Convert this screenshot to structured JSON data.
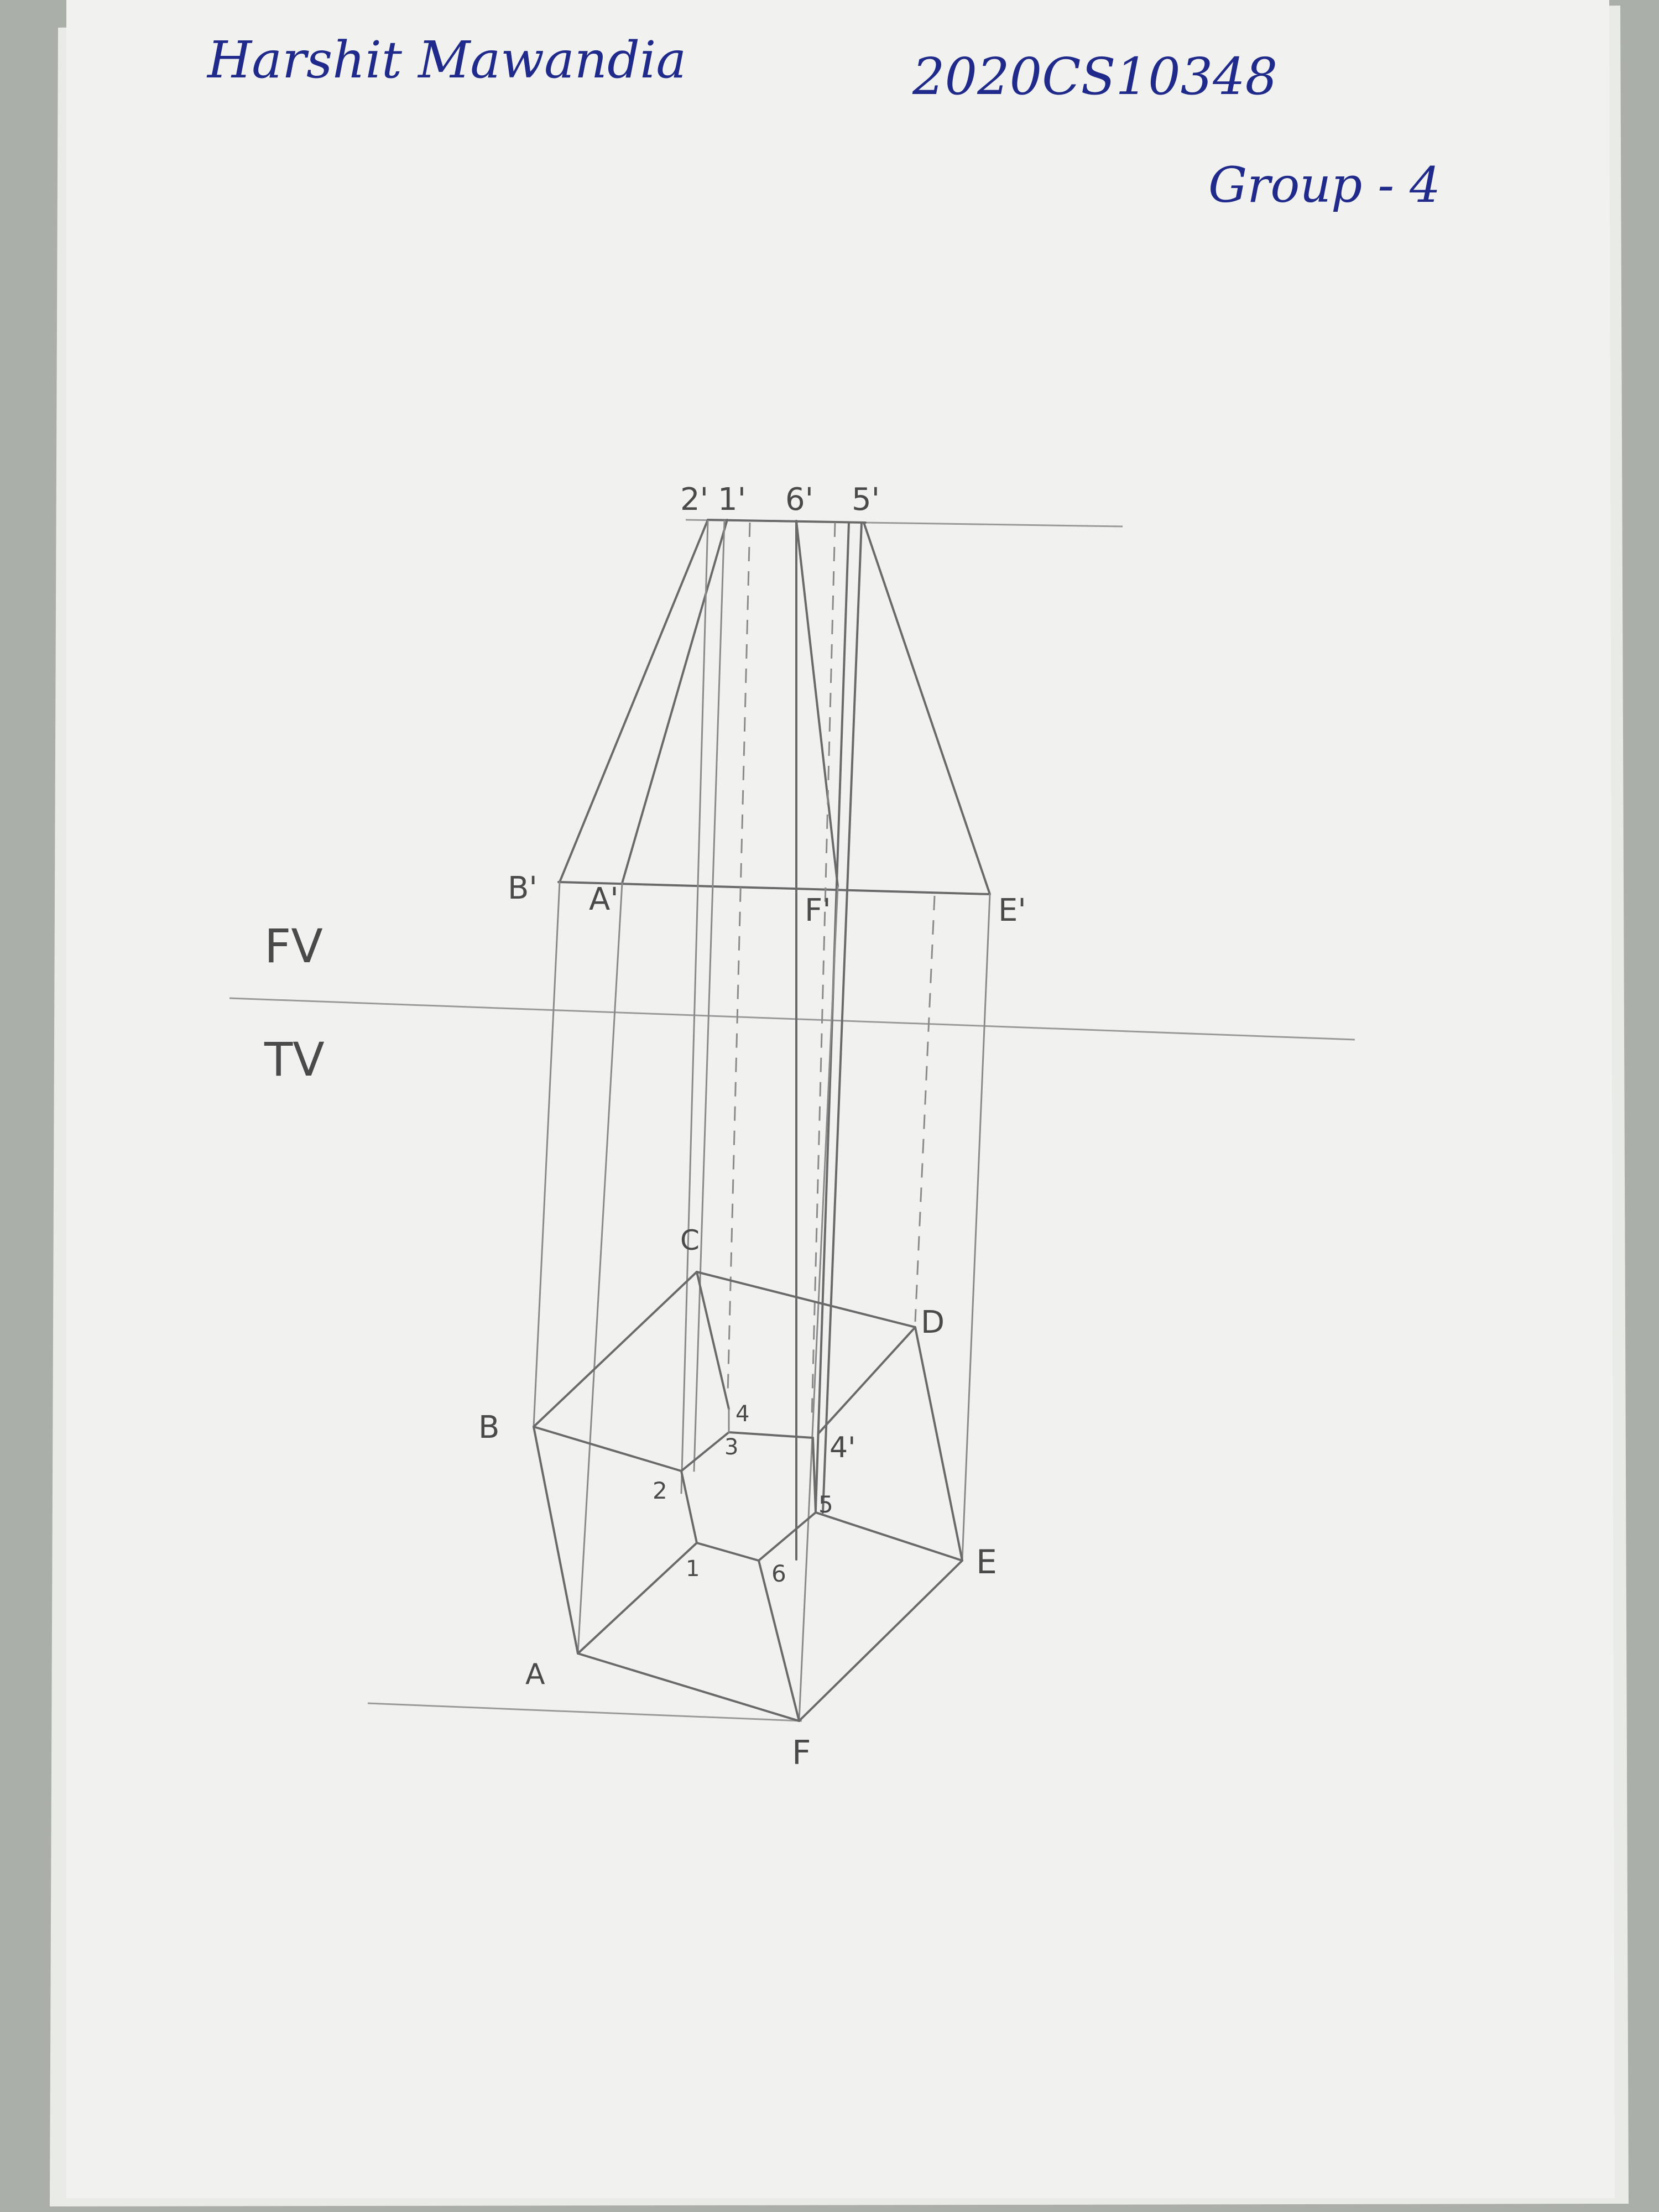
{
  "header": {
    "name": "Harshit Mawandia",
    "roll_number": "2020CS10348",
    "group": "Group - 4"
  },
  "diagram": {
    "view_labels": {
      "front": "FV",
      "top": "TV"
    },
    "front_view": {
      "top_labels": [
        "2'",
        "1'",
        "6'",
        "5'"
      ],
      "base_labels": [
        "B'",
        "A'",
        "F'",
        "E'"
      ]
    },
    "top_view": {
      "pentagon_labels": [
        "A",
        "B",
        "C",
        "D",
        "E",
        "F"
      ],
      "hexagon_labels": [
        "1",
        "2",
        "3",
        "4",
        "4'",
        "5",
        "6"
      ]
    }
  }
}
